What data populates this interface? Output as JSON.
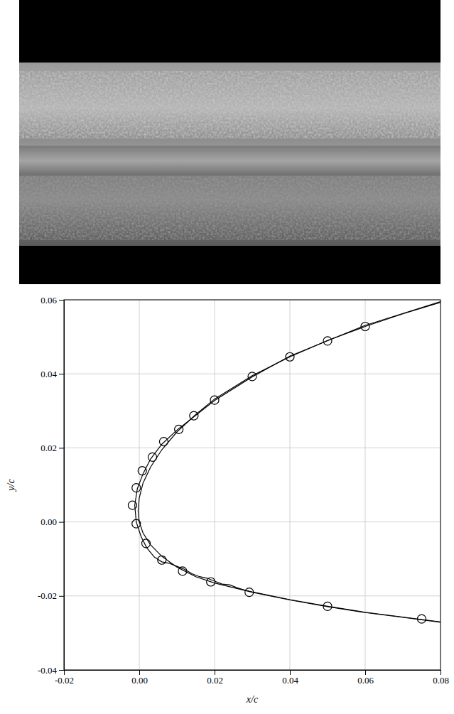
{
  "chart_data": {
    "type": "line",
    "xlabel": "x/c",
    "ylabel": "y/c",
    "xlim": [
      -0.02,
      0.08
    ],
    "ylim": [
      -0.04,
      0.06
    ],
    "xticks": [
      {
        "value": -0.02,
        "label": "-0.02"
      },
      {
        "value": 0,
        "label": "0.00"
      },
      {
        "value": 0.02,
        "label": "0.02"
      },
      {
        "value": 0.04,
        "label": "0.04"
      },
      {
        "value": 0.06,
        "label": "0.06"
      },
      {
        "value": 0.08,
        "label": "0.08"
      }
    ],
    "yticks": [
      {
        "value": -0.04,
        "label": "-0.04"
      },
      {
        "value": -0.02,
        "label": "-0.02"
      },
      {
        "value": 0,
        "label": "0.00"
      },
      {
        "value": 0.02,
        "label": "0.02"
      },
      {
        "value": 0.04,
        "label": "0.04"
      },
      {
        "value": 0.06,
        "label": "0.06"
      }
    ],
    "grid": true,
    "series": [
      {
        "type": "line",
        "color": "#000000",
        "line_style": "solid",
        "x": [
          0.08,
          0.07,
          0.06,
          0.05,
          0.04,
          0.03,
          0.02,
          0.015,
          0.01,
          0.006,
          0.003,
          0.001,
          0.0,
          -0.0003,
          0.0,
          0.001,
          0.003,
          0.006,
          0.01,
          0.015,
          0.02,
          0.03,
          0.04,
          0.05,
          0.06,
          0.07,
          0.08
        ],
        "values": [
          0.0593,
          0.0562,
          0.0528,
          0.049,
          0.0446,
          0.0395,
          0.0332,
          0.029,
          0.0243,
          0.0195,
          0.0148,
          0.0105,
          0.0065,
          0.003,
          0.0,
          -0.003,
          -0.0062,
          -0.0093,
          -0.0122,
          -0.0148,
          -0.0165,
          -0.019,
          -0.0211,
          -0.0229,
          -0.0245,
          -0.0258,
          -0.0271
        ]
      },
      {
        "type": "line",
        "color": "#000000",
        "line_style": "solid",
        "x": [
          0.08,
          0.06,
          0.04,
          0.03,
          0.02,
          0.01,
          0.006,
          0.003,
          0.001,
          -0.0005,
          -0.0012,
          -0.0008,
          0.0005,
          0.002,
          0.004,
          0.006,
          0.008,
          0.01,
          0.012,
          0.014,
          0.016,
          0.018,
          0.02,
          0.022,
          0.024,
          0.026,
          0.028,
          0.03,
          0.04,
          0.05,
          0.06,
          0.07,
          0.08
        ],
        "values": [
          0.0595,
          0.0531,
          0.0448,
          0.0392,
          0.0328,
          0.0248,
          0.021,
          0.017,
          0.013,
          0.009,
          0.0045,
          0.0,
          -0.004,
          -0.007,
          -0.0095,
          -0.0108,
          -0.0112,
          -0.012,
          -0.0128,
          -0.014,
          -0.0148,
          -0.0152,
          -0.016,
          -0.0168,
          -0.017,
          -0.0178,
          -0.0184,
          -0.0189,
          -0.021,
          -0.0228,
          -0.0244,
          -0.0257,
          -0.027
        ]
      },
      {
        "type": "scatter",
        "color": "#000000",
        "marker": "circle",
        "x": [
          0.06,
          0.05,
          0.04,
          0.03,
          0.02,
          0.0145,
          0.0105,
          0.0065,
          0.0035,
          0.0008,
          -0.0008,
          -0.0018,
          -0.0008,
          0.0018,
          0.006,
          0.0115,
          0.019,
          0.0292,
          0.05,
          0.075
        ],
        "values": [
          0.0528,
          0.0489,
          0.0446,
          0.0393,
          0.0329,
          0.0287,
          0.025,
          0.0217,
          0.0175,
          0.0138,
          0.0092,
          0.0045,
          -0.0005,
          -0.0058,
          -0.0103,
          -0.0133,
          -0.0162,
          -0.019,
          -0.0228,
          -0.0262
        ]
      }
    ]
  }
}
